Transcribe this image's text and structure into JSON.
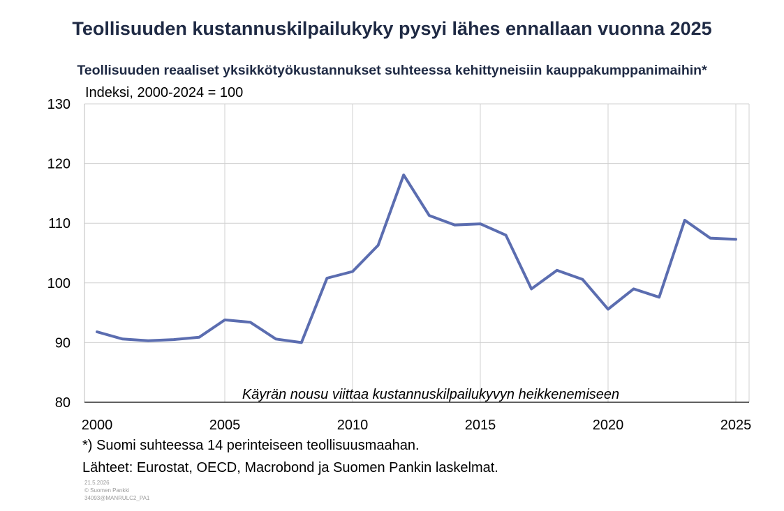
{
  "chart_data": {
    "type": "line",
    "title": "Teollisuuden kustannuskilpailukyky pysyi lähes ennallaan vuonna 2025",
    "subtitle": "Teollisuuden reaaliset yksikkötyökustannukset suhteessa kehittyneisiin kauppakumppanimaihin*",
    "ylabel": "Indeksi, 2000-2024 = 100",
    "xlabel": "",
    "ylim": [
      80,
      130
    ],
    "yticks": [
      80,
      90,
      100,
      110,
      120,
      130
    ],
    "xlim": [
      2000,
      2025.5
    ],
    "xticks": [
      2000,
      2005,
      2010,
      2015,
      2020,
      2025
    ],
    "grid": true,
    "annotation": "Käyrän nousu viittaa kustannuskilpailukyvyn heikkenemiseen",
    "color": "#5b6db0",
    "series": [
      {
        "x": [
          2000,
          2001,
          2002,
          2003,
          2004,
          2005,
          2006,
          2007,
          2008,
          2009,
          2010,
          2011,
          2012,
          2013,
          2014,
          2015,
          2016,
          2017,
          2018,
          2019,
          2020,
          2021,
          2022,
          2023,
          2024,
          2025
        ],
        "values": [
          91.8,
          90.6,
          90.3,
          90.5,
          90.9,
          93.8,
          93.4,
          90.6,
          90.0,
          100.8,
          101.9,
          106.3,
          118.1,
          111.3,
          109.7,
          109.9,
          108.0,
          99.0,
          102.1,
          100.6,
          95.6,
          99.0,
          97.6,
          110.5,
          107.5,
          107.3
        ]
      }
    ]
  },
  "footnotes": {
    "note": "*) Suomi suhteessa 14 perinteiseen teollisuusmaahan.",
    "sources": "Lähteet: Eurostat, OECD, Macrobond ja Suomen Pankin laskelmat."
  },
  "meta": {
    "date": "21.5.2026",
    "copyright": "© Suomen Pankki",
    "id": "34093@MANRULC2_PA1"
  }
}
